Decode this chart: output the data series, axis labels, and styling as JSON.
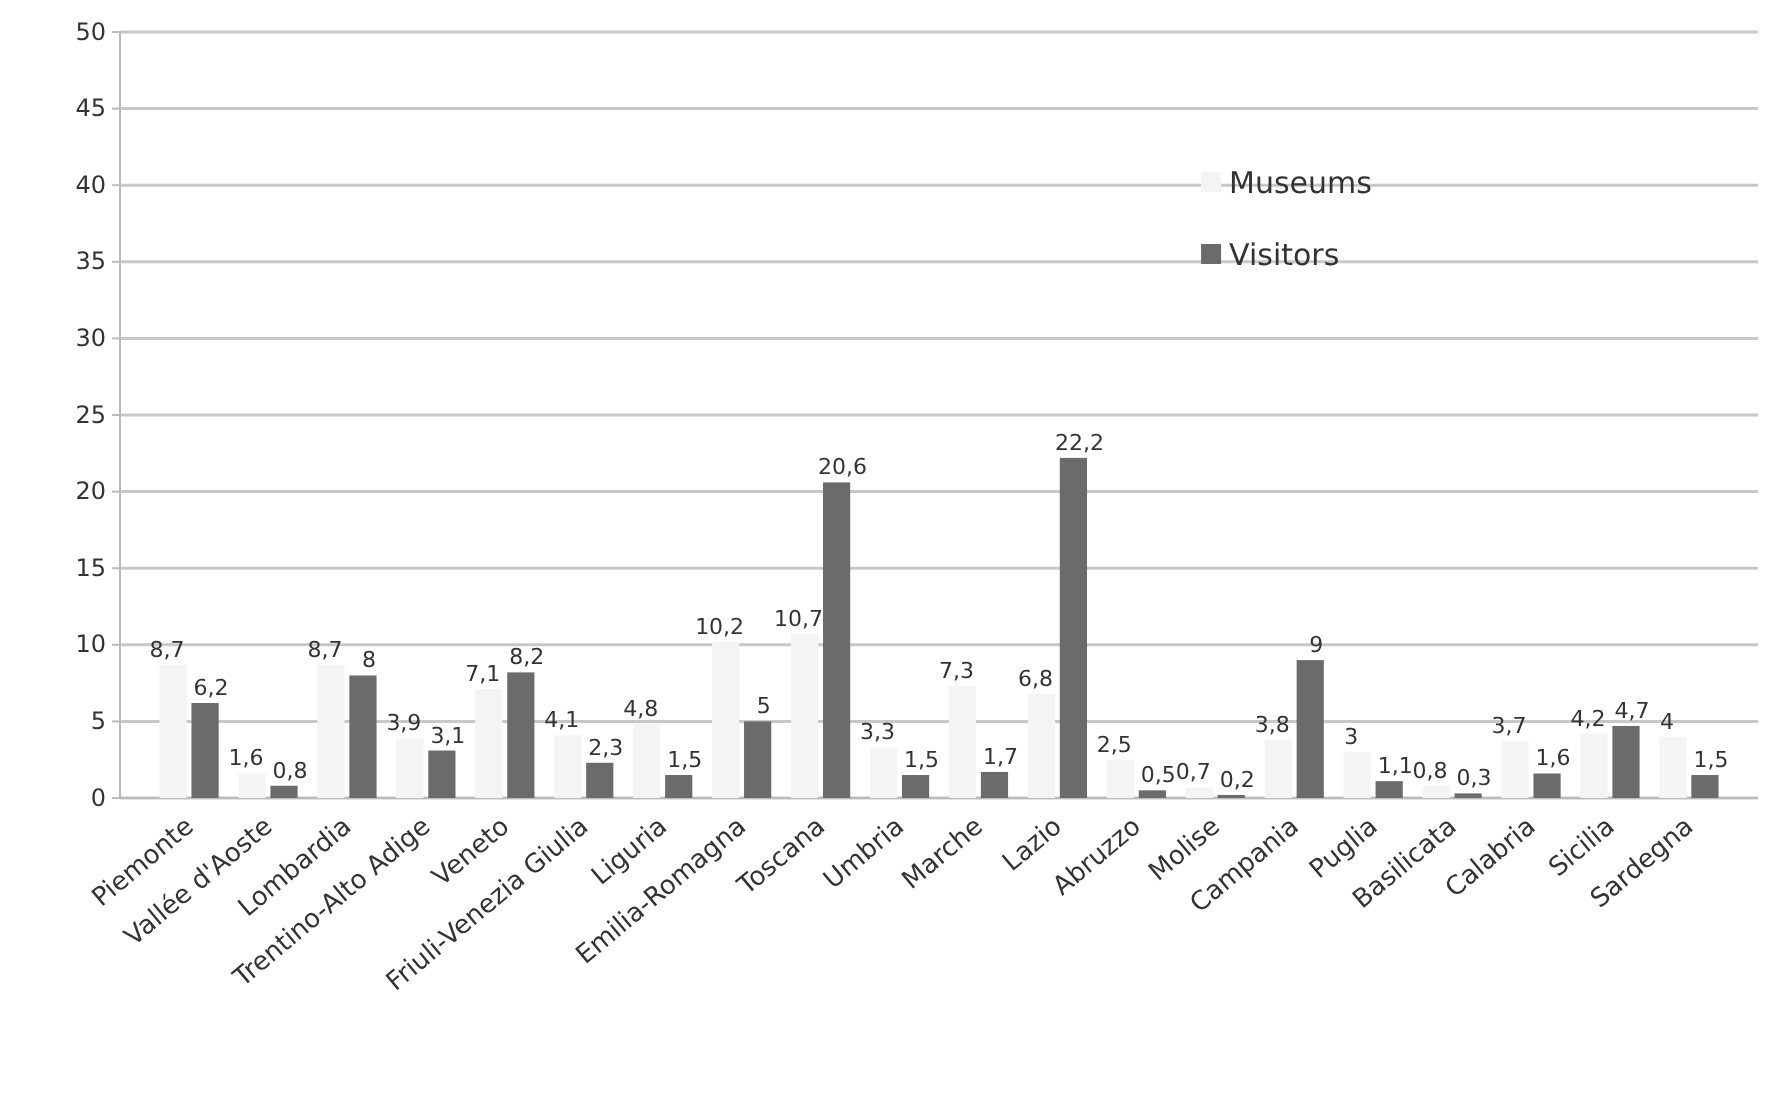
{
  "chart_data": {
    "type": "bar",
    "categories": [
      "Piemonte",
      "Vallée d'Aoste",
      "Lombardia",
      "Trentino-Alto Adige",
      "Veneto",
      "Friuli-Venezia Giulia",
      "Liguria",
      "Emilia-Romagna",
      "Toscana",
      "Umbria",
      "Marche",
      "Lazio",
      "Abruzzo",
      "Molise",
      "Campania",
      "Puglia",
      "Basilicata",
      "Calabria",
      "Sicilia",
      "Sardegna"
    ],
    "series": [
      {
        "name": "Museums",
        "color": "#f4f4f2",
        "values": [
          8.7,
          1.6,
          8.7,
          3.9,
          7.1,
          4.1,
          4.8,
          10.2,
          10.7,
          3.3,
          7.3,
          6.8,
          2.5,
          0.7,
          3.8,
          3,
          0.8,
          3.7,
          4.2,
          4
        ],
        "value_labels": [
          "8,7",
          "1,6",
          "8,7",
          "3,9",
          "7,1",
          "4,1",
          "4,8",
          "10,2",
          "10,7",
          "3,3",
          "7,3",
          "6,8",
          "2,5",
          "0,7",
          "3,8",
          "3",
          "0,8",
          "3,7",
          "4,2",
          "4"
        ]
      },
      {
        "name": "Visitors",
        "color": "#6b6b6b",
        "values": [
          6.2,
          0.8,
          8,
          3.1,
          8.2,
          2.3,
          1.5,
          5,
          20.6,
          1.5,
          1.7,
          22.2,
          0.5,
          0.2,
          9,
          1.1,
          0.3,
          1.6,
          4.7,
          1.5
        ],
        "value_labels": [
          "6,2",
          "0,8",
          "8",
          "3,1",
          "8,2",
          "2,3",
          "1,5",
          "5",
          "20,6",
          "1,5",
          "1,7",
          "22,2",
          "0,5",
          "0,2",
          "9",
          "1,1",
          "0,3",
          "1,6",
          "4,7",
          "1,5"
        ]
      }
    ],
    "ylim": [
      0,
      50
    ],
    "yticks": [
      0,
      5,
      10,
      15,
      20,
      25,
      30,
      35,
      40,
      45,
      50
    ],
    "grid": "y",
    "legend": "top right"
  }
}
